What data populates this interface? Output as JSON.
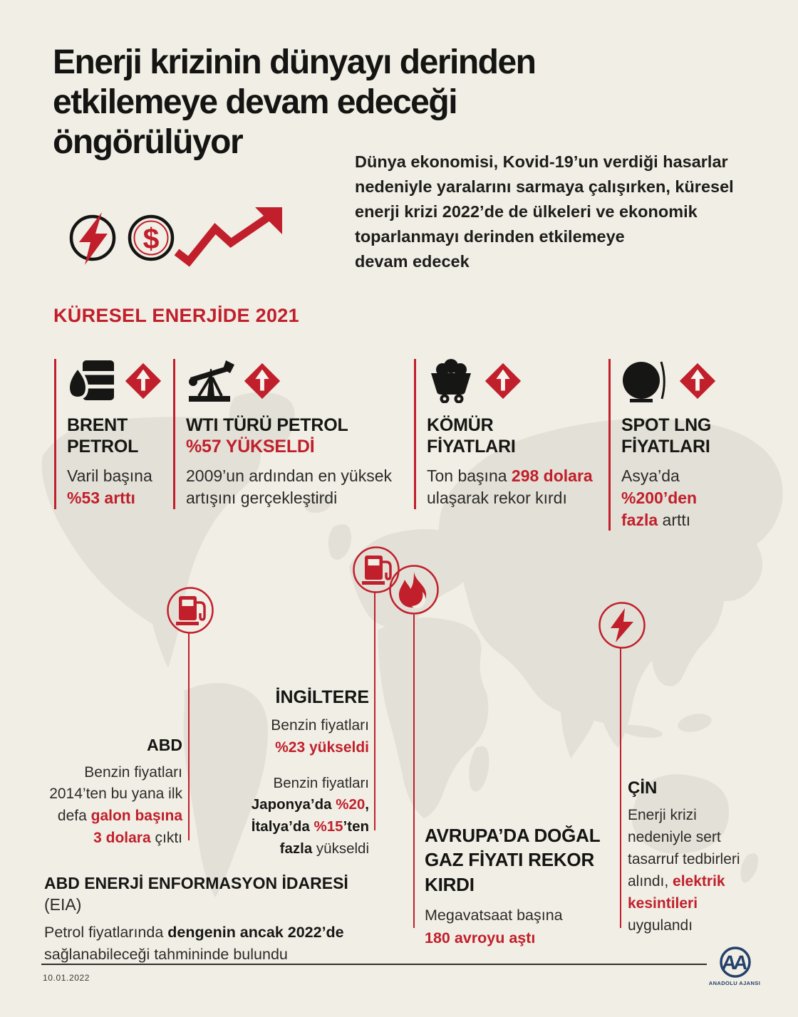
{
  "colors": {
    "red": "#c01f2b",
    "cream": "#f1eee5",
    "map_gray": "#e3e0d7",
    "ink": "#161614",
    "navy": "#24416b"
  },
  "header": {
    "title": "Enerji krizinin dünyayı derinden\netkilemeye devam edeceği\nöngörülüyor",
    "intro": "Dünya ekonomisi, Kovid-19’un verdiği hasarlar\nnedeniyle yaralarını sarmaya çalışırken, küresel\nenerji krizi 2022’de de ülkeleri ve ekonomik\ntoparlanmayı derinden etkilemeye\ndevam edecek",
    "dollar_glyph": "$",
    "icons": [
      "bolt-circle-icon",
      "dollar-circle-icon",
      "trend-up-arrow-icon"
    ]
  },
  "section": {
    "heading": "KÜRESEL ENERJİDE 2021"
  },
  "stats": [
    {
      "icon": "oil-barrel-icon",
      "badge": "up-diamond-icon",
      "title": "BRENT\nPETROL",
      "title_red": "",
      "body": [
        {
          "t": "Varil başına\n"
        },
        {
          "t": "%53 arttı",
          "s": "red"
        }
      ]
    },
    {
      "icon": "pumpjack-icon",
      "badge": "up-diamond-icon",
      "title": "WTI TÜRÜ PETROL",
      "title_red": "%57 YÜKSELDİ",
      "body": [
        {
          "t": "2009’un ardından en yüksek\nartışını gerçekleştirdi"
        }
      ]
    },
    {
      "icon": "coal-cart-icon",
      "badge": "up-diamond-icon",
      "title": "KÖMÜR\nFİYATLARI",
      "title_red": "",
      "body": [
        {
          "t": "Ton başına "
        },
        {
          "t": "298 dolara",
          "s": "red"
        },
        {
          "t": "\nulaşarak rekor kırdı"
        }
      ]
    },
    {
      "icon": "lng-tank-icon",
      "badge": "up-diamond-icon",
      "title": "SPOT LNG\nFİYATLARI",
      "title_red": "",
      "body": [
        {
          "t": "Asya’da "
        },
        {
          "t": "%200’den\nfazla",
          "s": "red"
        },
        {
          "t": " arttı"
        }
      ]
    }
  ],
  "callouts": {
    "abd": {
      "pin": "fuel-pump-icon",
      "title": "ABD",
      "body": [
        {
          "t": "Benzin fiyatları\n2014’ten bu yana ilk\ndefa "
        },
        {
          "t": "galon başına\n3 dolara",
          "s": "red"
        },
        {
          "t": " çıktı"
        }
      ]
    },
    "ingiltere": {
      "pin": "fuel-pump-icon",
      "title": "İNGİLTERE",
      "body": [
        {
          "t": "Benzin fiyatları\n"
        },
        {
          "t": "%23 yükseldi",
          "s": "red"
        }
      ],
      "body2": [
        {
          "t": "Benzin fiyatları\n"
        },
        {
          "t": "Japonya’da ",
          "s": "bold"
        },
        {
          "t": "%20",
          "s": "red"
        },
        {
          "t": ",\n",
          "s": "bold"
        },
        {
          "t": "İtalya’da ",
          "s": "bold"
        },
        {
          "t": "%15",
          "s": "red"
        },
        {
          "t": "’ten\nfazla",
          "s": "bold"
        },
        {
          "t": " yükseldi"
        }
      ]
    },
    "avrupa": {
      "pin": "flame-icon",
      "title": "AVRUPA’DA DOĞAL\nGAZ FİYATI REKOR\nKIRDI",
      "body": [
        {
          "t": "Megavatsaat başına\n"
        },
        {
          "t": "180 avroyu aştı",
          "s": "red"
        }
      ]
    },
    "cin": {
      "pin": "bolt-icon",
      "title": "ÇİN",
      "body": [
        {
          "t": "Enerji krizi\nnedeniyle sert\ntasarruf tedbirleri\nalındı, "
        },
        {
          "t": "elektrik\nkesintileri",
          "s": "red"
        },
        {
          "t": "\nuygulandı"
        }
      ]
    }
  },
  "source": {
    "title": [
      {
        "t": "ABD ENERJİ ENFORMASYON İDARESİ ",
        "s": "bold"
      },
      {
        "t": "(EIA)"
      }
    ],
    "body": [
      {
        "t": "Petrol fiyatlarında "
      },
      {
        "t": "dengenin ancak 2022’de",
        "s": "bold"
      },
      {
        "t": "\nsağlanabileceği tahmininde bulundu"
      }
    ]
  },
  "footer": {
    "date": "10.01.2022",
    "logo_letters": "AA",
    "agency": "ANADOLU AJANSI"
  }
}
